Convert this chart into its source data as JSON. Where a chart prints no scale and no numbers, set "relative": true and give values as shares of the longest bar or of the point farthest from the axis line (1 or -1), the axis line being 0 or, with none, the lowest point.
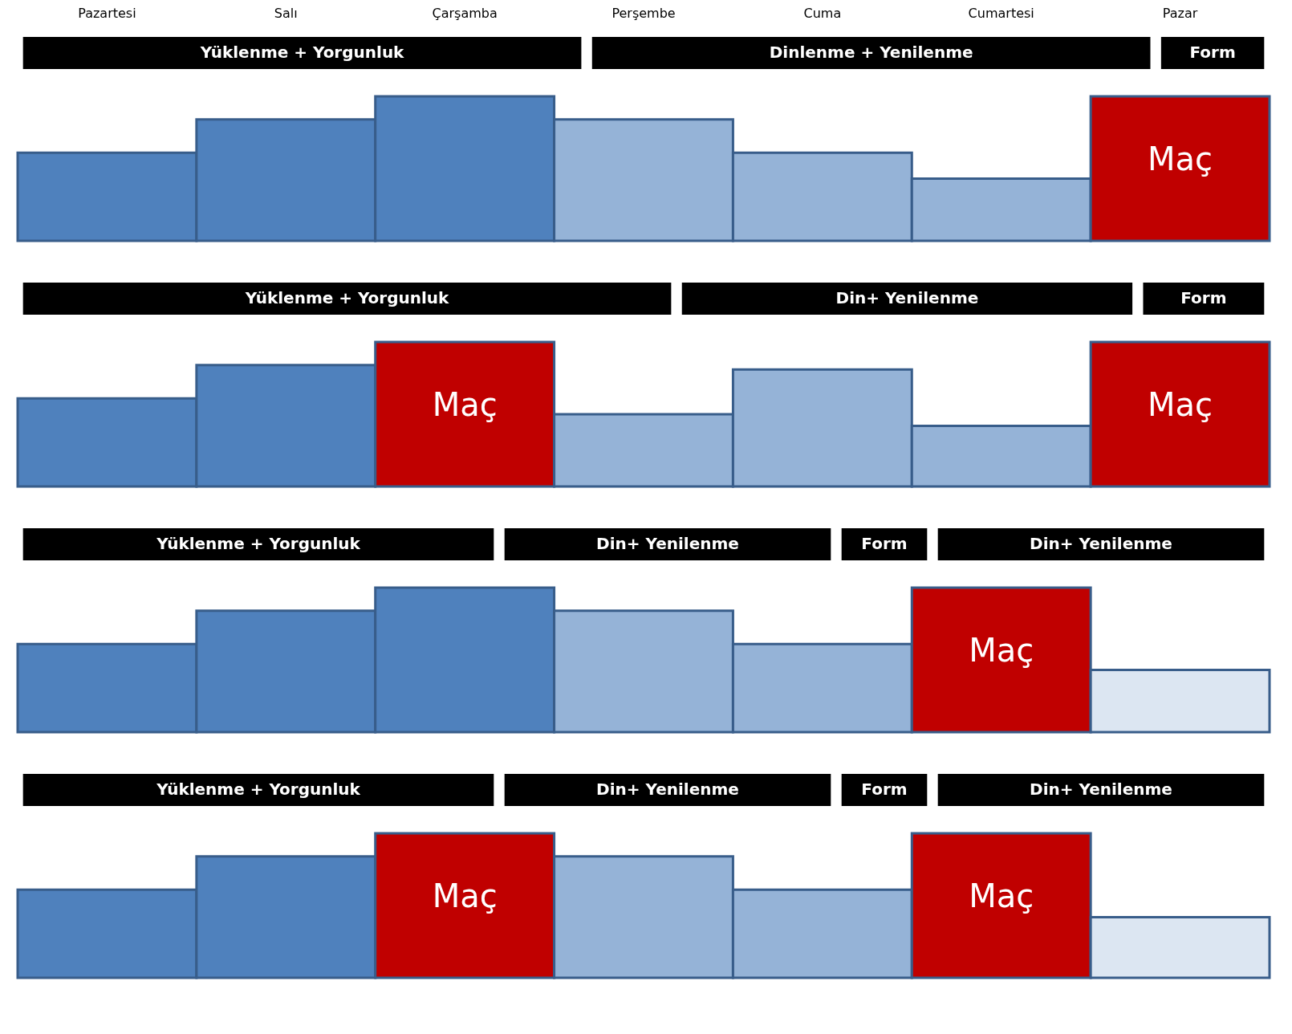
{
  "chart_data": [
    {
      "type": "bar",
      "relative": true,
      "tick_labels": "x",
      "categories": [
        "Pazartesi",
        "Salı",
        "Çarşamba",
        "Perşembe",
        "Cuma",
        "Cumartesi",
        "Pazar"
      ],
      "values": [
        0.61,
        0.84,
        1,
        0.84,
        0.61,
        0.43,
        1
      ],
      "colors": [
        "#4f81bd",
        "#4f81bd",
        "#4f81bd",
        "#95b3d7",
        "#95b3d7",
        "#95b3d7",
        "#c00000"
      ],
      "annotations": [
        "Yüklenme + Yorgunluk",
        "Dinlenme + Yenilenme",
        "Form",
        {
          "text": "Maç",
          "x": "Pazar",
          "y": 1
        }
      ]
    },
    {
      "type": "bar",
      "relative": true,
      "tick_labels": false,
      "categories": [
        "Pazartesi",
        "Salı",
        "Çarşamba",
        "Perşembe",
        "Cuma",
        "Cumartesi",
        "Pazar"
      ],
      "values": [
        0.61,
        0.84,
        1,
        0.5,
        0.81,
        0.42,
        1
      ],
      "colors": [
        "#4f81bd",
        "#4f81bd",
        "#c00000",
        "#95b3d7",
        "#95b3d7",
        "#95b3d7",
        "#c00000"
      ],
      "annotations": [
        "Yüklenme + Yorgunluk",
        "Din+ Yenilenme",
        "Form",
        {
          "text": "Maç",
          "x": "Çarşamba",
          "y": 1
        },
        {
          "text": "Maç",
          "x": "Pazar",
          "y": 1
        }
      ]
    },
    {
      "type": "bar",
      "relative": true,
      "tick_labels": false,
      "categories": [
        "Pazartesi",
        "Salı",
        "Çarşamba",
        "Perşembe",
        "Cuma",
        "Cumartesi",
        "Pazar"
      ],
      "values": [
        0.61,
        0.84,
        1,
        0.84,
        0.61,
        1,
        0.43
      ],
      "colors": [
        "#4f81bd",
        "#4f81bd",
        "#4f81bd",
        "#95b3d7",
        "#95b3d7",
        "#c00000",
        "#dce6f2"
      ],
      "annotations": [
        "Yüklenme + Yorgunluk",
        "Din+ Yenilenme",
        "Form",
        "Din+ Yenilenme",
        {
          "text": "Maç",
          "x": "Cumartesi",
          "y": 1
        }
      ]
    },
    {
      "type": "bar",
      "relative": true,
      "tick_labels": false,
      "categories": [
        "Pazartesi",
        "Salı",
        "Çarşamba",
        "Perşembe",
        "Cuma",
        "Cumartesi",
        "Pazar"
      ],
      "values": [
        0.61,
        0.84,
        1,
        0.84,
        0.61,
        1,
        0.42
      ],
      "colors": [
        "#4f81bd",
        "#4f81bd",
        "#c00000",
        "#95b3d7",
        "#95b3d7",
        "#c00000",
        "#dce6f2"
      ],
      "annotations": [
        "Yüklenme + Yorgunluk",
        "Din+ Yenilenme",
        "Form",
        "Din+ Yenilenme",
        {
          "text": "Maç",
          "x": "Çarşamba",
          "y": 1
        },
        {
          "text": "Maç",
          "x": "Cumartesi",
          "y": 1
        }
      ]
    }
  ]
}
